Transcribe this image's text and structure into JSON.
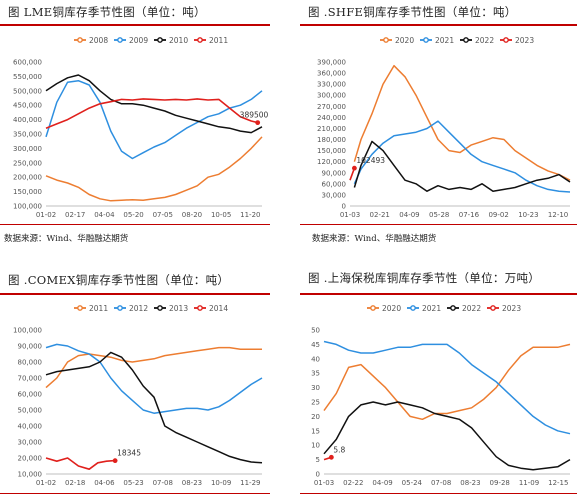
{
  "panels": [
    {
      "title": "图   LME铜库存季节性图（单位：吨）",
      "source": "数据来源：Wind、华融融达期货"
    },
    {
      "title": "图   .SHFE铜库存季节性图（单位：吨）",
      "source": "数据来源：Wind、华融融达期货"
    },
    {
      "title": "图   .COMEX铜库存季节性图（单位：吨）",
      "source": ""
    },
    {
      "title": "图   .上海保税库铜库存季节性（单位：万吨）",
      "source": ""
    }
  ],
  "colors": {
    "orange": "#ed7d31",
    "blue": "#2e8fe0",
    "black": "#111111",
    "red": "#e0201c",
    "rule": "#c00000"
  },
  "chart_data": [
    {
      "type": "line",
      "title": "LME铜库存季节性图（单位：吨）",
      "xcategories": [
        "01-02",
        "02-17",
        "04-04",
        "05-20",
        "07-05",
        "08-20",
        "10-05",
        "11-20"
      ],
      "ylim": [
        100000,
        600000
      ],
      "yticks": [
        100000,
        150000,
        200000,
        250000,
        300000,
        350000,
        400000,
        450000,
        500000,
        550000,
        600000
      ],
      "legend": [
        "2008",
        "2009",
        "2010",
        "2011"
      ],
      "series": [
        {
          "name": "2008",
          "color": "orange",
          "x": [
            0,
            0.05,
            0.1,
            0.15,
            0.2,
            0.25,
            0.3,
            0.35,
            0.4,
            0.45,
            0.5,
            0.55,
            0.6,
            0.65,
            0.7,
            0.75,
            0.8,
            0.85,
            0.9,
            0.95,
            1.0
          ],
          "values": [
            205000,
            190000,
            180000,
            165000,
            140000,
            125000,
            118000,
            120000,
            122000,
            120000,
            125000,
            130000,
            140000,
            155000,
            170000,
            200000,
            210000,
            235000,
            265000,
            300000,
            340000
          ]
        },
        {
          "name": "2009",
          "color": "blue",
          "x": [
            0,
            0.05,
            0.1,
            0.15,
            0.2,
            0.25,
            0.3,
            0.35,
            0.4,
            0.45,
            0.5,
            0.55,
            0.6,
            0.65,
            0.7,
            0.75,
            0.8,
            0.85,
            0.9,
            0.95,
            1.0
          ],
          "values": [
            340000,
            460000,
            530000,
            535000,
            520000,
            460000,
            360000,
            290000,
            265000,
            285000,
            305000,
            320000,
            345000,
            370000,
            390000,
            410000,
            420000,
            440000,
            450000,
            470000,
            500000
          ]
        },
        {
          "name": "2010",
          "color": "black",
          "x": [
            0,
            0.05,
            0.1,
            0.15,
            0.2,
            0.25,
            0.3,
            0.35,
            0.4,
            0.45,
            0.5,
            0.55,
            0.6,
            0.65,
            0.7,
            0.75,
            0.8,
            0.85,
            0.9,
            0.95,
            1.0
          ],
          "values": [
            500000,
            525000,
            545000,
            555000,
            535000,
            500000,
            470000,
            455000,
            455000,
            450000,
            440000,
            430000,
            415000,
            405000,
            395000,
            385000,
            375000,
            370000,
            360000,
            355000,
            375000
          ]
        },
        {
          "name": "2011",
          "color": "red",
          "x": [
            0,
            0.05,
            0.1,
            0.15,
            0.2,
            0.25,
            0.3,
            0.35,
            0.4,
            0.45,
            0.5,
            0.55,
            0.6,
            0.65,
            0.7,
            0.75,
            0.8,
            0.85,
            0.9,
            0.95,
            0.98
          ],
          "values": [
            370000,
            385000,
            400000,
            420000,
            440000,
            455000,
            462000,
            470000,
            468000,
            472000,
            470000,
            468000,
            470000,
            468000,
            472000,
            468000,
            470000,
            440000,
            410000,
            395000,
            389500
          ]
        }
      ],
      "annotations": [
        {
          "text": "389500",
          "series": "2011",
          "value": 389500
        }
      ]
    },
    {
      "type": "line",
      "title": "SHFE铜库存季节性图（单位：吨）",
      "xcategories": [
        "01-03",
        "02-21",
        "04-09",
        "05-28",
        "07-16",
        "09-02",
        "10-23",
        "12-10"
      ],
      "ylim": [
        0,
        390000
      ],
      "yticks": [
        0,
        30000,
        60000,
        90000,
        120000,
        150000,
        180000,
        210000,
        240000,
        270000,
        300000,
        330000,
        360000,
        390000
      ],
      "legend": [
        "2020",
        "2021",
        "2022",
        "2023"
      ],
      "series": [
        {
          "name": "2020",
          "color": "orange",
          "x": [
            0.02,
            0.05,
            0.1,
            0.15,
            0.2,
            0.25,
            0.3,
            0.35,
            0.4,
            0.45,
            0.5,
            0.55,
            0.6,
            0.65,
            0.7,
            0.75,
            0.8,
            0.85,
            0.9,
            0.95,
            1.0
          ],
          "values": [
            120000,
            180000,
            250000,
            330000,
            380000,
            350000,
            300000,
            240000,
            180000,
            150000,
            145000,
            165000,
            175000,
            185000,
            180000,
            150000,
            130000,
            110000,
            95000,
            85000,
            70000
          ]
        },
        {
          "name": "2021",
          "color": "blue",
          "x": [
            0.02,
            0.05,
            0.1,
            0.15,
            0.2,
            0.25,
            0.3,
            0.35,
            0.4,
            0.45,
            0.5,
            0.55,
            0.6,
            0.65,
            0.7,
            0.75,
            0.8,
            0.85,
            0.9,
            0.95,
            1.0
          ],
          "values": [
            60000,
            100000,
            140000,
            170000,
            190000,
            195000,
            200000,
            210000,
            230000,
            200000,
            170000,
            140000,
            120000,
            110000,
            100000,
            90000,
            70000,
            55000,
            45000,
            40000,
            38000
          ]
        },
        {
          "name": "2022",
          "color": "black",
          "x": [
            0.02,
            0.05,
            0.1,
            0.15,
            0.2,
            0.25,
            0.3,
            0.35,
            0.4,
            0.45,
            0.5,
            0.55,
            0.6,
            0.65,
            0.7,
            0.75,
            0.8,
            0.85,
            0.9,
            0.95,
            1.0
          ],
          "values": [
            50000,
            110000,
            175000,
            150000,
            110000,
            70000,
            60000,
            40000,
            55000,
            45000,
            50000,
            45000,
            60000,
            40000,
            45000,
            50000,
            60000,
            70000,
            75000,
            85000,
            65000
          ]
        },
        {
          "name": "2023",
          "color": "red",
          "x": [
            0.0,
            0.02
          ],
          "values": [
            70000,
            102493
          ]
        }
      ],
      "annotations": [
        {
          "text": "102493",
          "series": "2023",
          "value": 102493
        }
      ]
    },
    {
      "type": "line",
      "title": "COMEX铜库存季节性图（单位：吨）",
      "xcategories": [
        "01-02",
        "02-18",
        "04-06",
        "05-23",
        "07-08",
        "08-23",
        "10-09",
        "11-29"
      ],
      "ylim": [
        10000,
        100000
      ],
      "yticks": [
        10000,
        20000,
        30000,
        40000,
        50000,
        60000,
        70000,
        80000,
        90000,
        100000
      ],
      "legend": [
        "2011",
        "2012",
        "2013",
        "2014"
      ],
      "series": [
        {
          "name": "2011",
          "color": "orange",
          "x": [
            0,
            0.05,
            0.1,
            0.15,
            0.2,
            0.25,
            0.3,
            0.35,
            0.4,
            0.45,
            0.5,
            0.55,
            0.6,
            0.65,
            0.7,
            0.75,
            0.8,
            0.85,
            0.9,
            0.95,
            1.0
          ],
          "values": [
            64000,
            70000,
            80000,
            84000,
            85000,
            84000,
            83000,
            81000,
            80000,
            81000,
            82000,
            84000,
            85000,
            86000,
            87000,
            88000,
            89000,
            89000,
            88000,
            88000,
            88000
          ]
        },
        {
          "name": "2012",
          "color": "blue",
          "x": [
            0,
            0.05,
            0.1,
            0.15,
            0.2,
            0.25,
            0.3,
            0.35,
            0.4,
            0.45,
            0.5,
            0.55,
            0.6,
            0.65,
            0.7,
            0.75,
            0.8,
            0.85,
            0.9,
            0.95,
            1.0
          ],
          "values": [
            89000,
            91000,
            90000,
            87000,
            85000,
            80000,
            70000,
            62000,
            56000,
            50000,
            48000,
            49000,
            50000,
            51000,
            51000,
            50000,
            52000,
            56000,
            61000,
            66000,
            70000
          ]
        },
        {
          "name": "2013",
          "color": "black",
          "x": [
            0,
            0.05,
            0.1,
            0.15,
            0.2,
            0.25,
            0.3,
            0.35,
            0.4,
            0.45,
            0.5,
            0.55,
            0.6,
            0.65,
            0.7,
            0.75,
            0.8,
            0.85,
            0.9,
            0.95,
            1.0
          ],
          "values": [
            72000,
            74000,
            75000,
            76000,
            77000,
            80000,
            86000,
            83000,
            75000,
            65000,
            58000,
            40000,
            36000,
            33000,
            30000,
            27000,
            24000,
            21000,
            19000,
            17500,
            17000
          ]
        },
        {
          "name": "2014",
          "color": "red",
          "x": [
            0,
            0.05,
            0.1,
            0.15,
            0.2,
            0.24,
            0.28,
            0.32
          ],
          "values": [
            20000,
            18000,
            20000,
            15000,
            13000,
            17000,
            18000,
            18345
          ]
        }
      ],
      "annotations": [
        {
          "text": "18345",
          "series": "2014",
          "value": 18345
        }
      ]
    },
    {
      "type": "line",
      "title": "上海保税库铜库存季节性（单位：万吨）",
      "xcategories": [
        "01-03",
        "02-22",
        "04-09",
        "05-24",
        "07-08",
        "08-23",
        "09-28",
        "11-09",
        "12-15"
      ],
      "ylim": [
        0,
        50
      ],
      "yticks": [
        0,
        5,
        10,
        15,
        20,
        25,
        30,
        35,
        40,
        45,
        50
      ],
      "legend": [
        "2020",
        "2021",
        "2022",
        "2023"
      ],
      "series": [
        {
          "name": "2020",
          "color": "orange",
          "x": [
            0,
            0.05,
            0.1,
            0.15,
            0.2,
            0.25,
            0.3,
            0.35,
            0.4,
            0.45,
            0.5,
            0.55,
            0.6,
            0.65,
            0.7,
            0.75,
            0.8,
            0.85,
            0.9,
            0.95,
            1.0
          ],
          "values": [
            22,
            28,
            37,
            38,
            34,
            30,
            25,
            20,
            19,
            21,
            21,
            22,
            23,
            26,
            30,
            36,
            41,
            44,
            44,
            44,
            45
          ]
        },
        {
          "name": "2021",
          "color": "blue",
          "x": [
            0,
            0.05,
            0.1,
            0.15,
            0.2,
            0.25,
            0.3,
            0.35,
            0.4,
            0.45,
            0.5,
            0.55,
            0.6,
            0.65,
            0.7,
            0.75,
            0.8,
            0.85,
            0.9,
            0.95,
            1.0
          ],
          "values": [
            46,
            45,
            43,
            42,
            42,
            43,
            44,
            44,
            45,
            45,
            45,
            42,
            38,
            35,
            32,
            28,
            24,
            20,
            17,
            15,
            14
          ]
        },
        {
          "name": "2022",
          "color": "black",
          "x": [
            0,
            0.05,
            0.1,
            0.15,
            0.2,
            0.25,
            0.3,
            0.35,
            0.4,
            0.45,
            0.5,
            0.55,
            0.6,
            0.65,
            0.7,
            0.75,
            0.8,
            0.85,
            0.9,
            0.95,
            1.0
          ],
          "values": [
            7,
            12,
            20,
            24,
            25,
            24,
            25,
            24,
            23,
            21,
            20,
            19,
            16,
            11,
            6,
            3,
            2,
            1.5,
            2,
            2.5,
            5
          ]
        },
        {
          "name": "2023",
          "color": "red",
          "x": [
            0.0,
            0.03
          ],
          "values": [
            5.0,
            5.8
          ]
        }
      ],
      "annotations": [
        {
          "text": "5.8",
          "series": "2023",
          "value": 5.8
        }
      ]
    }
  ]
}
